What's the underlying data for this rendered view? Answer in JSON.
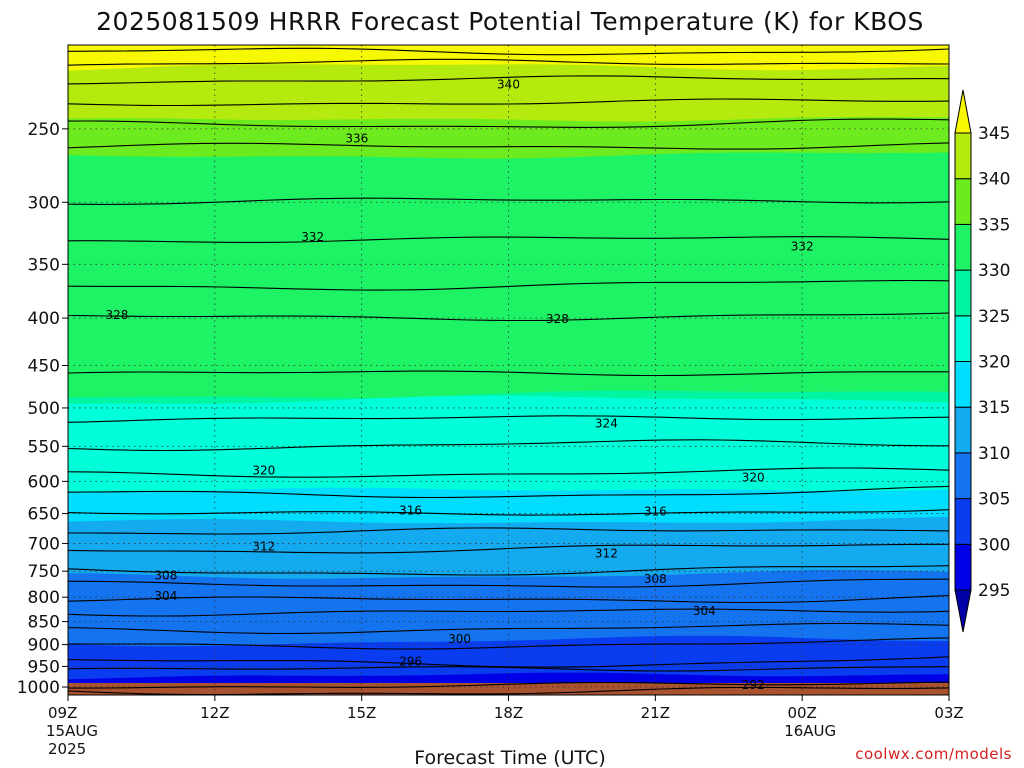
{
  "chart_data": {
    "type": "heatmap",
    "title": "2025081509 HRRR Forecast Potential Temperature (K) for KBOS",
    "xlabel": "Forecast Time (UTC)",
    "ylabel": "",
    "credit": "coolwx.com/models",
    "y_scale": "log-pressure",
    "y_direction": "pressure decreasing upward",
    "y_ticks": [
      250,
      300,
      350,
      400,
      450,
      500,
      550,
      600,
      650,
      700,
      750,
      800,
      850,
      900,
      950,
      1000
    ],
    "ylim": [
      1020,
      203
    ],
    "x_ticks": [
      {
        "hour": 0,
        "label": "09Z",
        "sub1": "15AUG",
        "sub2": "2025"
      },
      {
        "hour": 3,
        "label": "12Z",
        "sub1": "",
        "sub2": ""
      },
      {
        "hour": 6,
        "label": "15Z",
        "sub1": "",
        "sub2": ""
      },
      {
        "hour": 9,
        "label": "18Z",
        "sub1": "",
        "sub2": ""
      },
      {
        "hour": 12,
        "label": "21Z",
        "sub1": "",
        "sub2": ""
      },
      {
        "hour": 15,
        "label": "00Z",
        "sub1": "16AUG",
        "sub2": ""
      },
      {
        "hour": 18,
        "label": "03Z",
        "sub1": "",
        "sub2": ""
      }
    ],
    "xlim_hours": [
      0,
      18
    ],
    "grid": true,
    "colorbar": {
      "position": "right",
      "levels": [
        295,
        300,
        305,
        310,
        315,
        320,
        325,
        330,
        335,
        340,
        345
      ],
      "colors": [
        "#0000a8",
        "#0000e6",
        "#0a3cf0",
        "#1473ee",
        "#14aaf0",
        "#00ddff",
        "#00ffd9",
        "#00f5a2",
        "#1ef265",
        "#6cec1e",
        "#b4ea0e",
        "#f8f800"
      ],
      "extend": "both"
    },
    "fill_bands": [
      {
        "upper": 306,
        "value": 1020,
        "color": "#0000a8"
      },
      {
        "upper": 300,
        "value": 975,
        "color": "#0000e6"
      },
      {
        "upper": 305,
        "value": 895,
        "color": "#0a3cf0"
      },
      {
        "upper": 310,
        "value": 760,
        "color": "#1473ee"
      },
      {
        "upper": 315,
        "value": 665,
        "color": "#14aaf0"
      },
      {
        "upper": 320,
        "value": 615,
        "color": "#00ddff"
      },
      {
        "upper": 325,
        "value": 492,
        "color": "#00ffd9"
      },
      {
        "upper": 330,
        "value": 485,
        "color": "#00f5a2"
      },
      {
        "upper": 335,
        "value": 268,
        "color": "#1ef265"
      },
      {
        "upper": 340,
        "value": 245,
        "color": "#6cec1e"
      },
      {
        "upper": 345,
        "value": 215,
        "color": "#b4ea0e"
      },
      {
        "upper": 350,
        "value": 206,
        "color": "#f8f800"
      }
    ],
    "contours": [
      {
        "theta": 292,
        "p": 1005
      },
      {
        "theta": 294,
        "p": 990
      },
      {
        "theta": 296,
        "p": 950
      },
      {
        "theta": 298,
        "p": 935
      },
      {
        "theta": 300,
        "p": 895
      },
      {
        "theta": 302,
        "p": 860
      },
      {
        "theta": 304,
        "p": 825
      },
      {
        "theta": 306,
        "p": 800
      },
      {
        "theta": 308,
        "p": 770
      },
      {
        "theta": 310,
        "p": 745
      },
      {
        "theta": 312,
        "p": 705
      },
      {
        "theta": 314,
        "p": 675
      },
      {
        "theta": 316,
        "p": 645
      },
      {
        "theta": 318,
        "p": 615
      },
      {
        "theta": 320,
        "p": 590
      },
      {
        "theta": 322,
        "p": 550
      },
      {
        "theta": 324,
        "p": 515
      },
      {
        "theta": 326,
        "p": 460
      },
      {
        "theta": 328,
        "p": 400
      },
      {
        "theta": 330,
        "p": 370
      },
      {
        "theta": 332,
        "p": 330
      },
      {
        "theta": 334,
        "p": 300
      },
      {
        "theta": 336,
        "p": 262
      },
      {
        "theta": 338,
        "p": 248
      },
      {
        "theta": 340,
        "p": 235
      },
      {
        "theta": 342,
        "p": 222
      },
      {
        "theta": 344,
        "p": 213
      },
      {
        "theta": 346,
        "p": 207
      }
    ],
    "contour_labels": [
      {
        "text": "340",
        "hour": 9.0,
        "p": 224
      },
      {
        "text": "336",
        "hour": 5.9,
        "p": 256
      },
      {
        "text": "332",
        "hour": 5.0,
        "p": 327
      },
      {
        "text": "332",
        "hour": 15.0,
        "p": 335
      },
      {
        "text": "328",
        "hour": 1.0,
        "p": 397
      },
      {
        "text": "328",
        "hour": 10.0,
        "p": 401
      },
      {
        "text": "324",
        "hour": 11.0,
        "p": 520
      },
      {
        "text": "320",
        "hour": 4.0,
        "p": 584
      },
      {
        "text": "320",
        "hour": 14.0,
        "p": 594
      },
      {
        "text": "316",
        "hour": 7.0,
        "p": 645
      },
      {
        "text": "316",
        "hour": 12.0,
        "p": 647
      },
      {
        "text": "312",
        "hour": 4.0,
        "p": 705
      },
      {
        "text": "312",
        "hour": 11.0,
        "p": 718
      },
      {
        "text": "308",
        "hour": 2.0,
        "p": 758
      },
      {
        "text": "308",
        "hour": 12.0,
        "p": 765
      },
      {
        "text": "304",
        "hour": 2.0,
        "p": 798
      },
      {
        "text": "304",
        "hour": 13.0,
        "p": 828
      },
      {
        "text": "300",
        "hour": 8.0,
        "p": 888
      },
      {
        "text": "296",
        "hour": 7.0,
        "p": 938
      },
      {
        "text": "292",
        "hour": 14.0,
        "p": 995
      }
    ],
    "ground_color": "#a8522e"
  }
}
